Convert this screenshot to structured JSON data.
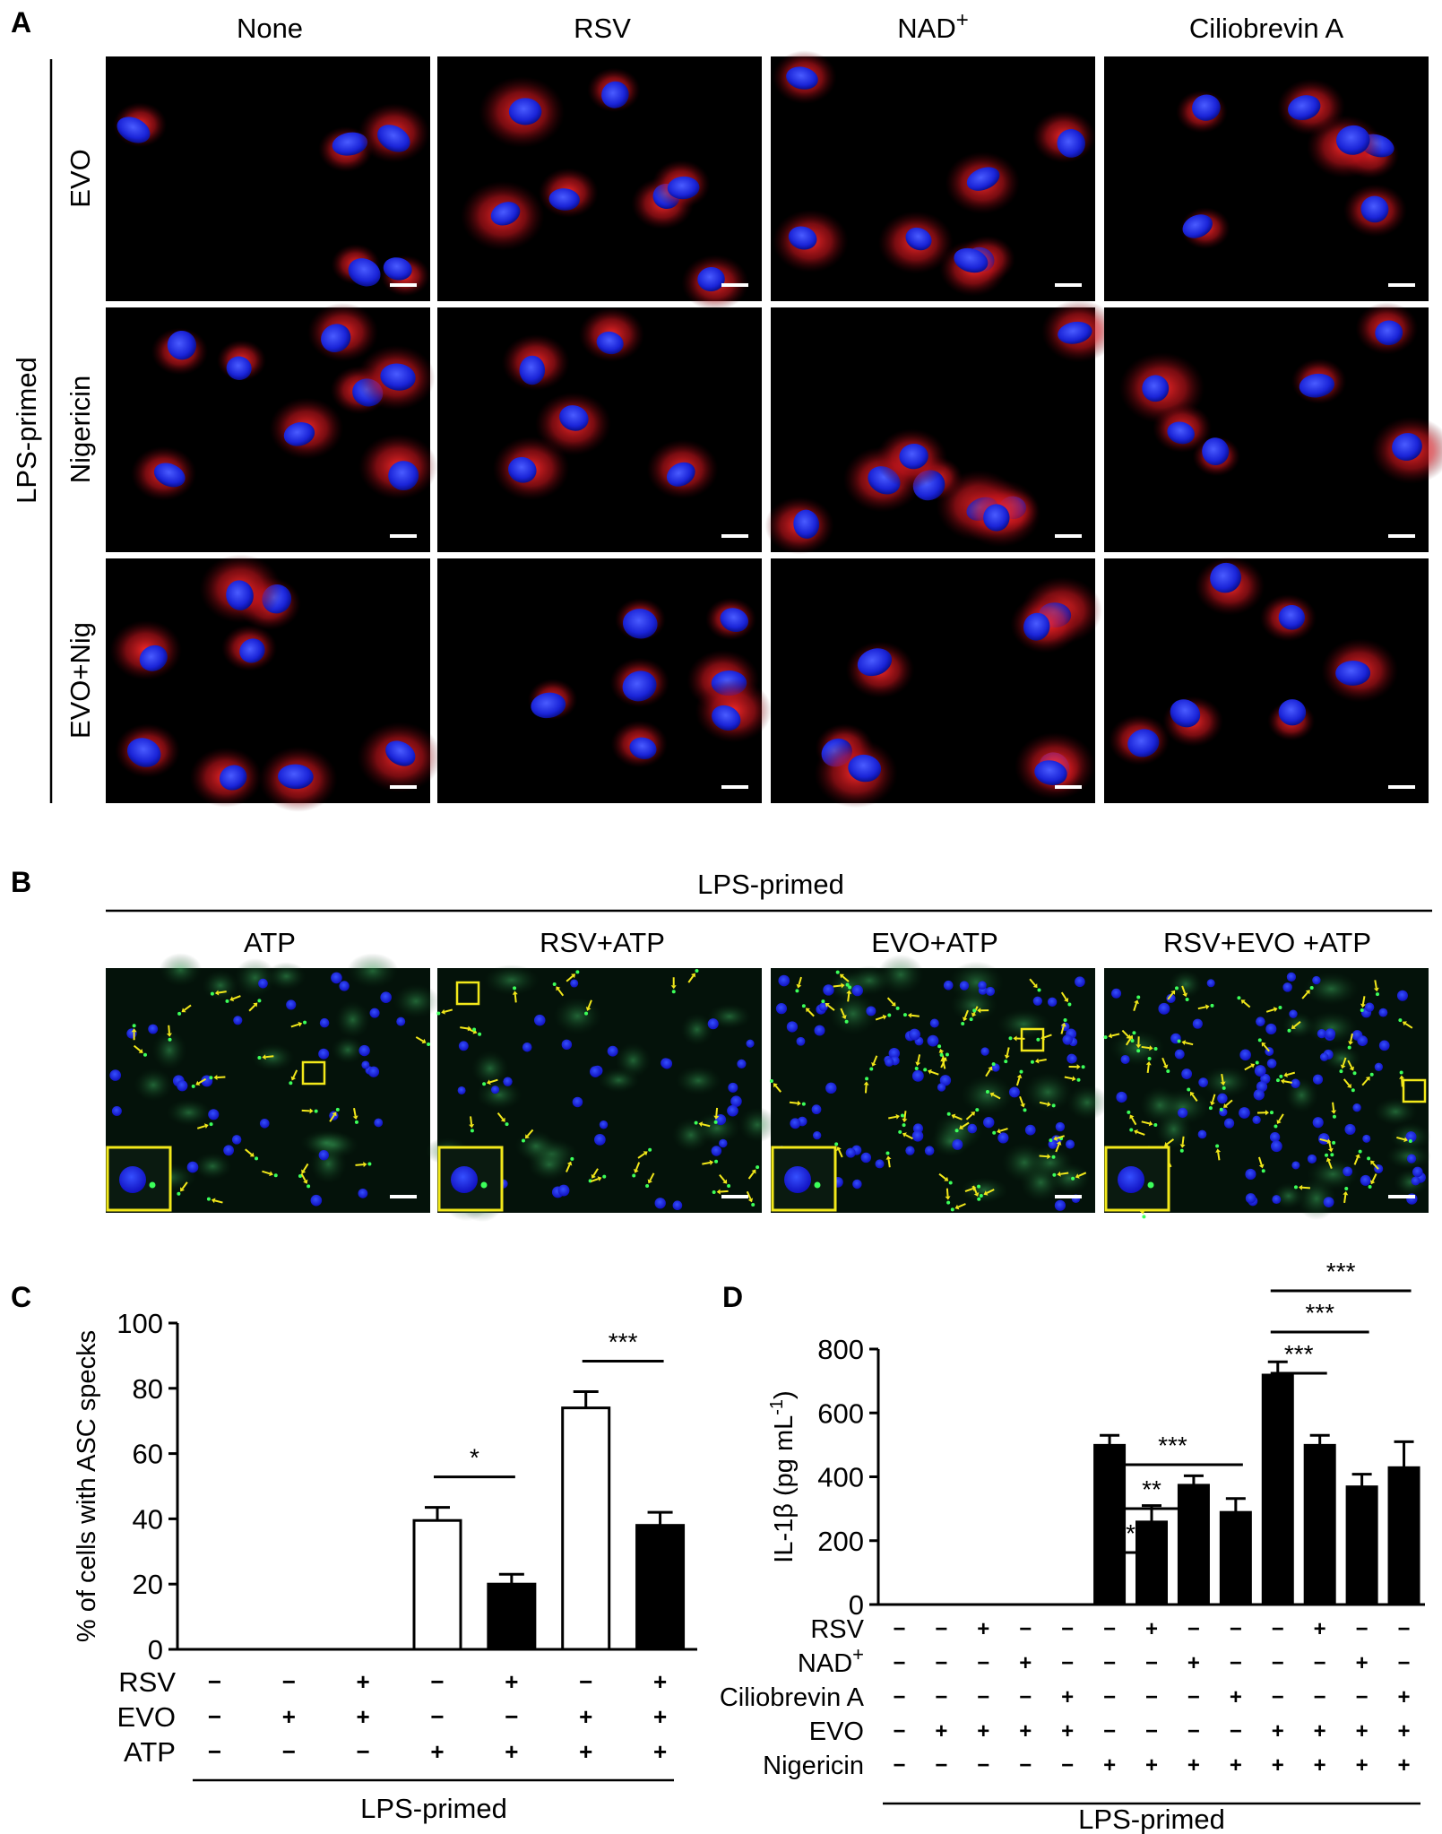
{
  "panel_a": {
    "letter": "A",
    "columns": [
      "None",
      "RSV",
      "NAD+",
      "Ciliobrevin A"
    ],
    "rows": [
      "EVO",
      "Nigericin",
      "EVO+Nig"
    ],
    "group_label": "LPS-primed"
  },
  "panel_b": {
    "letter": "B",
    "group_label": "LPS-primed",
    "columns": [
      "ATP",
      "RSV+ATP",
      "EVO+ATP",
      "RSV+EVO +ATP"
    ]
  },
  "chart_data": [
    {
      "panel": "C",
      "type": "bar",
      "ylabel": "% of cells with ASC specks",
      "ylim": [
        0,
        100
      ],
      "yticks": [
        0,
        20,
        40,
        60,
        80,
        100
      ],
      "bar_styles": [
        "open",
        "filled",
        "open",
        "filled"
      ],
      "values": [
        39.5,
        20,
        74,
        38
      ],
      "errors": [
        4,
        3,
        5,
        4
      ],
      "bar_positions": [
        4,
        5,
        6,
        7
      ],
      "treatments": {
        "RSV": [
          "−",
          "−",
          "+",
          "−",
          "+",
          "−",
          "+"
        ],
        "EVO": [
          "−",
          "+",
          "+",
          "−",
          "−",
          "+",
          "+"
        ],
        "ATP": [
          "−",
          "−",
          "−",
          "+",
          "+",
          "+",
          "+"
        ]
      },
      "treatment_labels": [
        "RSV",
        "EVO",
        "ATP"
      ],
      "group_label": "LPS-primed",
      "significance": [
        {
          "label": "*",
          "from": 4,
          "to": 5
        },
        {
          "label": "***",
          "from": 6,
          "to": 7
        }
      ]
    },
    {
      "panel": "D",
      "type": "bar",
      "ylabel": "IL-1β (pg mL-1)",
      "ylim": [
        0,
        800
      ],
      "yticks": [
        0,
        200,
        400,
        600,
        800
      ],
      "values": [
        0,
        0,
        0,
        0,
        0,
        500,
        260,
        375,
        290,
        720,
        500,
        370,
        430
      ],
      "errors": [
        0,
        0,
        0,
        0,
        0,
        30,
        50,
        28,
        42,
        40,
        30,
        38,
        80
      ],
      "treatments": {
        "RSV": [
          "−",
          "−",
          "+",
          "−",
          "−",
          "−",
          "+",
          "−",
          "−",
          "−",
          "+",
          "−",
          "−"
        ],
        "NAD+": [
          "−",
          "−",
          "−",
          "+",
          "−",
          "−",
          "−",
          "+",
          "−",
          "−",
          "−",
          "+",
          "−"
        ],
        "Ciliobrevin A": [
          "−",
          "−",
          "−",
          "−",
          "+",
          "−",
          "−",
          "−",
          "+",
          "−",
          "−",
          "−",
          "+"
        ],
        "EVO": [
          "−",
          "+",
          "+",
          "+",
          "+",
          "−",
          "−",
          "−",
          "−",
          "+",
          "+",
          "+",
          "+"
        ],
        "Nigericin": [
          "−",
          "−",
          "−",
          "−",
          "−",
          "+",
          "+",
          "+",
          "+",
          "+",
          "+",
          "+",
          "+"
        ]
      },
      "treatment_labels": [
        "RSV",
        "NAD+",
        "Ciliobrevin A",
        "EVO",
        "Nigericin"
      ],
      "group_label": "LPS-primed",
      "significance": [
        {
          "label": "***",
          "from": 6,
          "to": 7
        },
        {
          "label": "**",
          "from": 6,
          "to": 8
        },
        {
          "label": "***",
          "from": 6,
          "to": 9
        },
        {
          "label": "***",
          "from": 10,
          "to": 11
        },
        {
          "label": "***",
          "from": 10,
          "to": 12
        },
        {
          "label": "***",
          "from": 10,
          "to": 13
        }
      ]
    }
  ]
}
